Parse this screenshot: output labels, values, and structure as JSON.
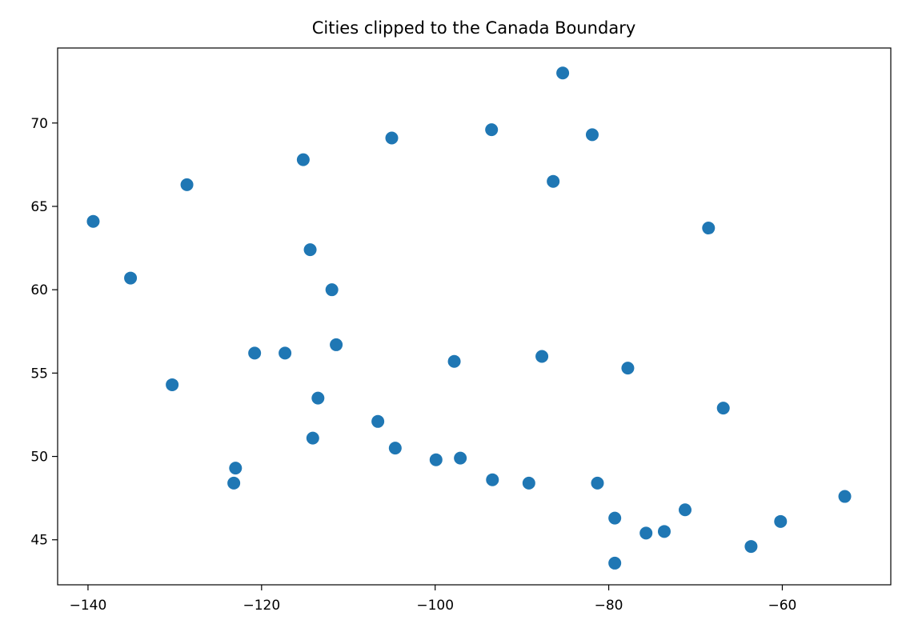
{
  "chart_data": {
    "type": "scatter",
    "title": "Cities clipped to the Canada Boundary",
    "xlabel": "",
    "ylabel": "",
    "xlim": [
      -143.5,
      -47.5
    ],
    "ylim": [
      42.3,
      74.5
    ],
    "xticks": [
      -140,
      -120,
      -100,
      -80,
      -60
    ],
    "xtick_labels": [
      "−140",
      "−120",
      "−100",
      "−80",
      "−60"
    ],
    "yticks": [
      45,
      50,
      55,
      60,
      65,
      70
    ],
    "ytick_labels": [
      "45",
      "50",
      "55",
      "60",
      "65",
      "70"
    ],
    "grid": false,
    "legend": "none",
    "marker_color": "#1f77b4",
    "series": [
      {
        "x": [
          -85.3,
          -93.5,
          -81.9,
          -105.0,
          -115.2,
          -86.4,
          -128.6,
          -139.4,
          -68.5,
          -114.4,
          -135.1,
          -111.9,
          -111.4,
          -120.8,
          -117.3,
          -87.7,
          -97.8,
          -77.8,
          -130.3,
          -113.5,
          -66.8,
          -106.6,
          -114.1,
          -104.6,
          -97.1,
          -99.9,
          -123.0,
          -123.2,
          -93.4,
          -89.2,
          -81.3,
          -79.3,
          -71.2,
          -73.6,
          -75.7,
          -60.2,
          -63.6,
          -79.3,
          -52.8
        ],
        "y": [
          73.0,
          69.6,
          69.3,
          69.1,
          67.8,
          66.5,
          66.3,
          64.1,
          63.7,
          62.4,
          60.7,
          60.0,
          56.7,
          56.2,
          56.2,
          56.0,
          55.7,
          55.3,
          54.3,
          53.5,
          52.9,
          52.1,
          51.1,
          50.5,
          49.9,
          49.8,
          49.3,
          48.4,
          48.6,
          48.4,
          48.4,
          46.3,
          46.8,
          45.5,
          45.4,
          46.1,
          44.6,
          43.6,
          47.6
        ]
      }
    ]
  }
}
